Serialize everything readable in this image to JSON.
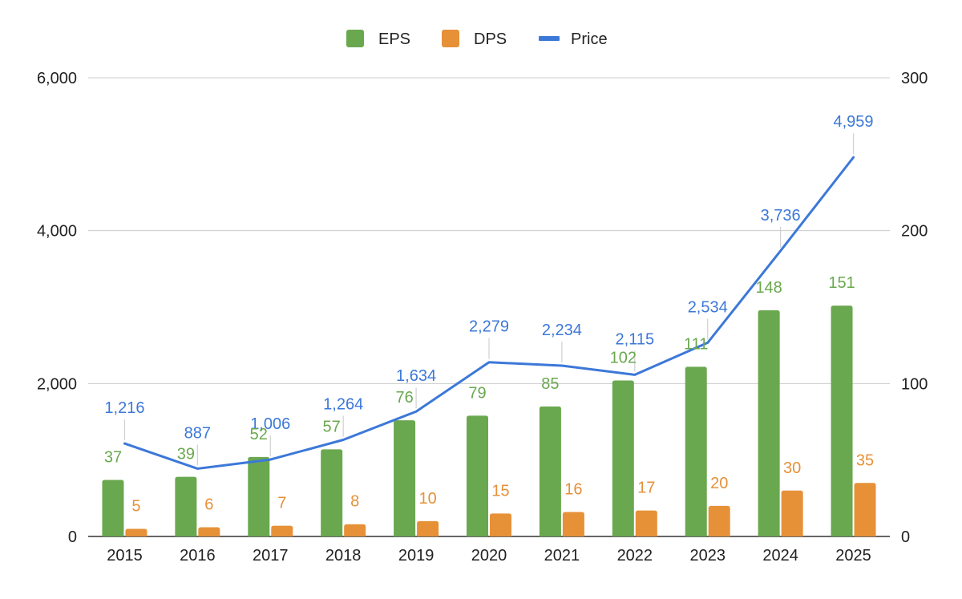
{
  "chart_data": {
    "type": "bar",
    "categories": [
      "2015",
      "2016",
      "2017",
      "2018",
      "2019",
      "2020",
      "2021",
      "2022",
      "2023",
      "2024",
      "2025"
    ],
    "series": [
      {
        "name": "EPS",
        "kind": "bar",
        "axis": "right",
        "color": "#6aa84f",
        "values": [
          37,
          39,
          52,
          57,
          76,
          79,
          85,
          102,
          111,
          148,
          151
        ],
        "labels": [
          "37",
          "39",
          "52",
          "57",
          "76",
          "79",
          "85",
          "102",
          "111",
          "148",
          "151"
        ]
      },
      {
        "name": "DPS",
        "kind": "bar",
        "axis": "right",
        "color": "#e69138",
        "values": [
          5,
          6,
          7,
          8,
          10,
          15,
          16,
          17,
          20,
          30,
          35
        ],
        "labels": [
          "5",
          "6",
          "7",
          "8",
          "10",
          "15",
          "16",
          "17",
          "20",
          "30",
          "35"
        ]
      },
      {
        "name": "Price",
        "kind": "line",
        "axis": "left",
        "color": "#3c78d8",
        "values": [
          1216,
          887,
          1006,
          1264,
          1634,
          2279,
          2234,
          2115,
          2534,
          3736,
          4959
        ],
        "labels": [
          "1,216",
          "887",
          "1,006",
          "1,264",
          "1,634",
          "2,279",
          "2,234",
          "2,115",
          "2,534",
          "3,736",
          "4,959"
        ]
      }
    ],
    "y_left": {
      "range": [
        0,
        6000
      ],
      "ticks": [
        "0",
        "2,000",
        "4,000",
        "6,000"
      ],
      "tick_values": [
        0,
        2000,
        4000,
        6000
      ]
    },
    "y_right": {
      "range": [
        0,
        300
      ],
      "ticks": [
        "0",
        "100",
        "200",
        "300"
      ],
      "tick_values": [
        0,
        100,
        200,
        300
      ]
    },
    "grid": true,
    "legend_position": "top-center",
    "legend": [
      "EPS",
      "DPS",
      "Price"
    ]
  }
}
